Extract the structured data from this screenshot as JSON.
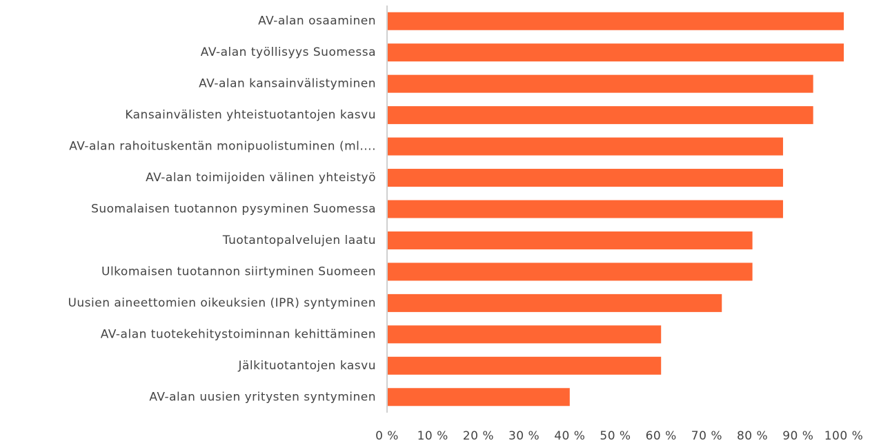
{
  "chart_data": {
    "type": "bar",
    "orientation": "horizontal",
    "categories": [
      "AV-alan osaaminen",
      "AV-alan  työllisyys Suomessa",
      "AV-alan kansainvälistyminen",
      "Kansainvälisten yhteistuotantojen kasvu",
      "AV-alan rahoituskentän monipuolistuminen (ml....",
      "AV-alan toimijoiden välinen yhteistyö",
      "Suomalaisen tuotannon pysyminen Suomessa",
      "Tuotantopalvelujen laatu",
      "Ulkomaisen tuotannon siirtyminen Suomeen",
      "Uusien aineettomien oikeuksien (IPR) syntyminen",
      "AV-alan tuotekehitystoiminnan kehittäminen",
      "Jälkituotantojen kasvu",
      "AV-alan uusien yritysten syntyminen"
    ],
    "values": [
      100,
      100,
      93.3,
      93.3,
      86.7,
      86.7,
      86.7,
      80,
      80,
      73.3,
      60,
      60,
      40
    ],
    "color": "#ff6633",
    "xlim": [
      0,
      100
    ],
    "xticks": [
      {
        "value": 0,
        "label": "0 %"
      },
      {
        "value": 10,
        "label": "10 %"
      },
      {
        "value": 20,
        "label": "20 %"
      },
      {
        "value": 30,
        "label": "30 %"
      },
      {
        "value": 40,
        "label": "40 %"
      },
      {
        "value": 50,
        "label": "50 %"
      },
      {
        "value": 60,
        "label": "60 %"
      },
      {
        "value": 70,
        "label": "70 %"
      },
      {
        "value": 80,
        "label": "80 %"
      },
      {
        "value": 90,
        "label": "90 %"
      },
      {
        "value": 100,
        "label": "100 %"
      }
    ],
    "grid": false
  }
}
